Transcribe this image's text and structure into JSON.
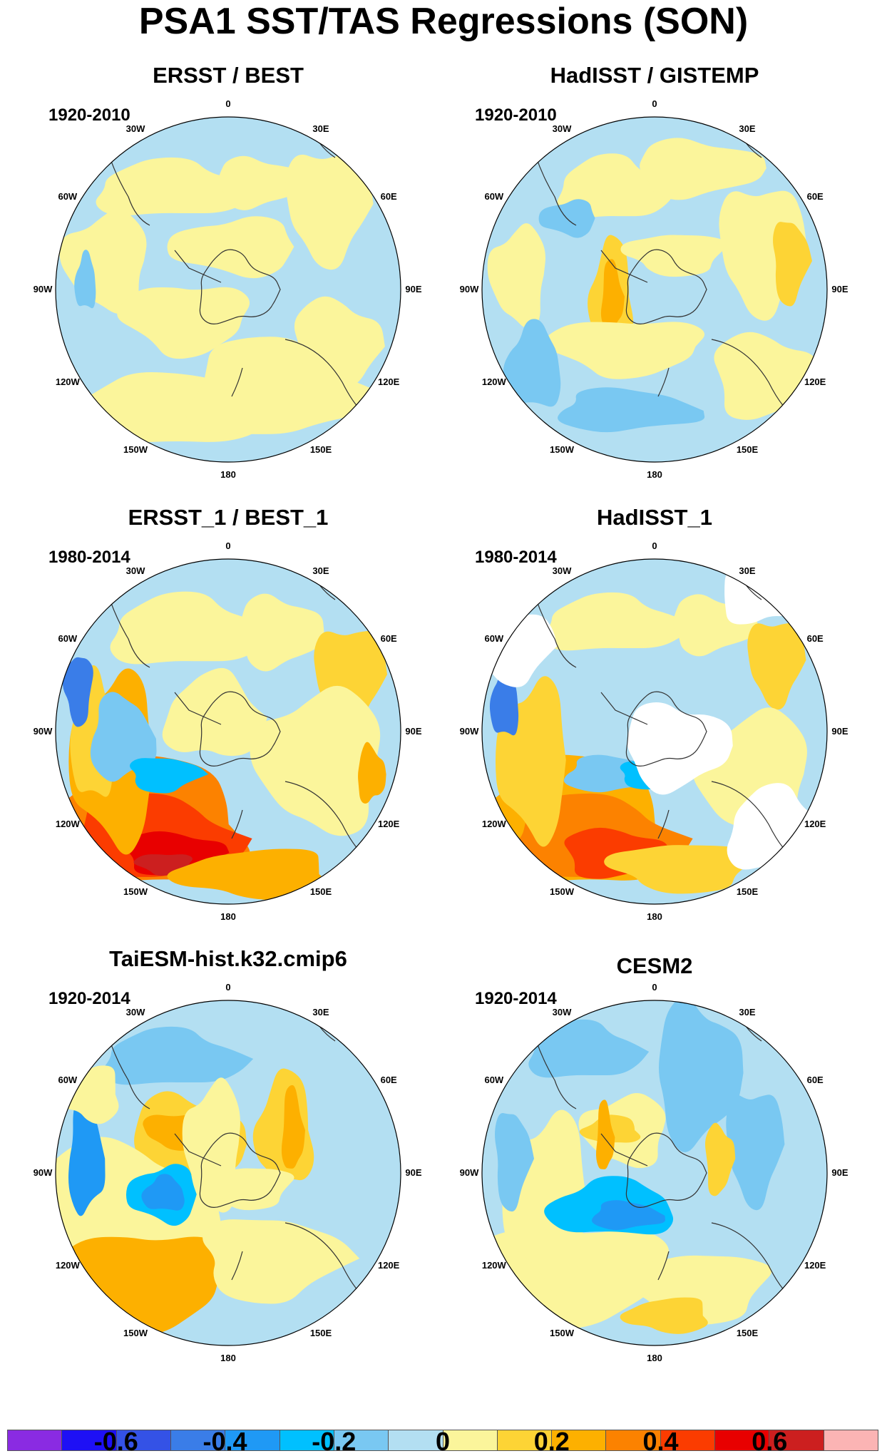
{
  "title": "PSA1 SST/TAS Regressions (SON)",
  "lon_labels": [
    "0",
    "30E",
    "60E",
    "90E",
    "120E",
    "150E",
    "180",
    "150W",
    "120W",
    "90W",
    "60W",
    "30W"
  ],
  "panels": [
    {
      "title": "ERSST / BEST",
      "period": "1920-2010",
      "pattern": "weak"
    },
    {
      "title": "HadISST / GISTEMP",
      "period": "1920-2010",
      "pattern": "mixed"
    },
    {
      "title": "ERSST_1 / BEST_1",
      "period": "1980-2014",
      "pattern": "strong"
    },
    {
      "title": "HadISST_1",
      "period": "1980-2014",
      "pattern": "strong_missing"
    },
    {
      "title": "TaiESM-hist.k32.cmip6",
      "period": "1920-2014",
      "pattern": "model1"
    },
    {
      "title": "CESM2",
      "period": "1920-2014",
      "pattern": "model2"
    }
  ],
  "colorbar": {
    "colors": [
      "#8a2be2",
      "#1e10f5",
      "#3452e6",
      "#3a7de8",
      "#1f99f5",
      "#00c0ff",
      "#79c8f2",
      "#b3dff2",
      "#fbf59b",
      "#fdd435",
      "#fdb000",
      "#fc8200",
      "#fb3c00",
      "#e80000",
      "#cc1f1f",
      "#fbb4b4"
    ],
    "labels": [
      "-0.6",
      "-0.4",
      "-0.2",
      "0",
      "0.2",
      "0.4",
      "0.6"
    ]
  }
}
